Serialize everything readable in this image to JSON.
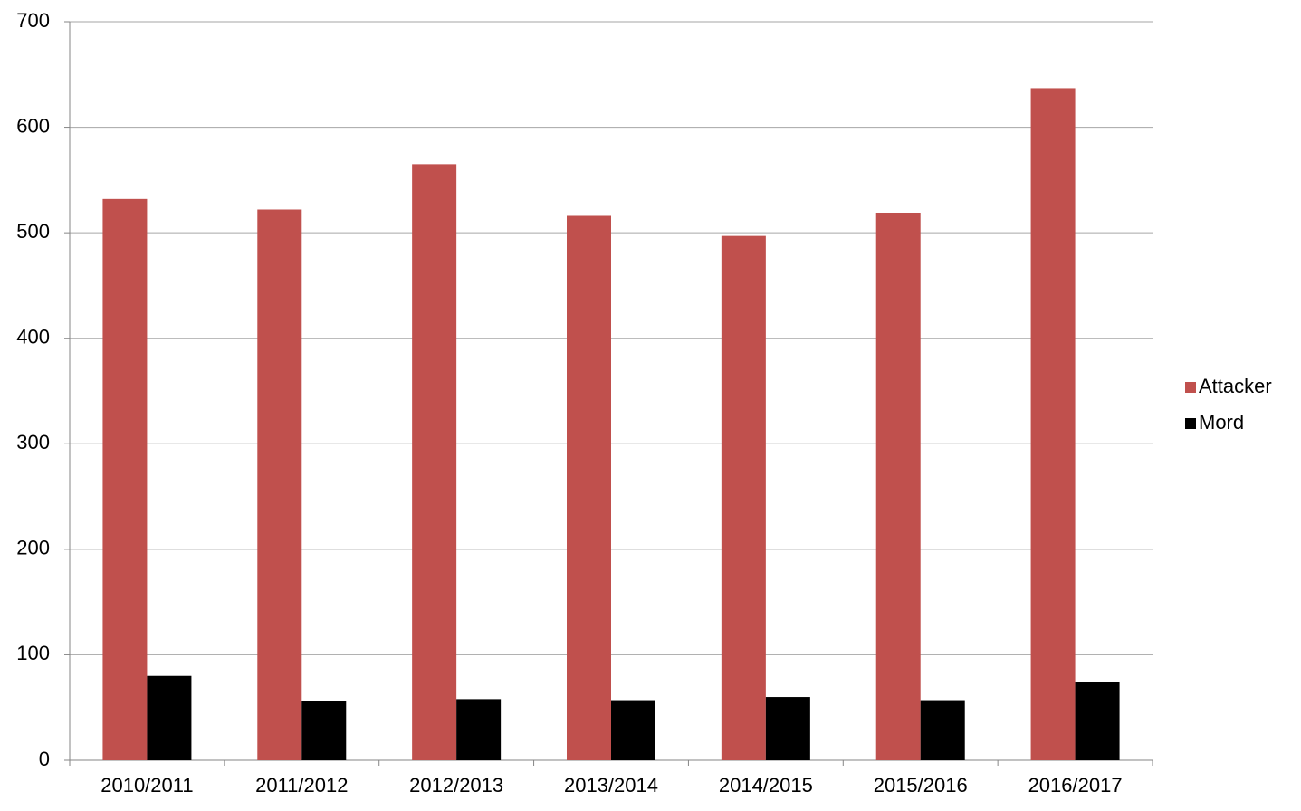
{
  "chart_data": {
    "type": "bar",
    "categories": [
      "2010/2011",
      "2011/2012",
      "2012/2013",
      "2013/2014",
      "2014/2015",
      "2015/2016",
      "2016/2017"
    ],
    "series": [
      {
        "name": "Attacker",
        "color": "#c0504d",
        "values": [
          532,
          522,
          565,
          516,
          497,
          519,
          637
        ]
      },
      {
        "name": "Mord",
        "color": "#000000",
        "values": [
          80,
          56,
          58,
          57,
          60,
          57,
          74
        ]
      }
    ],
    "ylim": [
      0,
      700
    ],
    "yticks": [
      0,
      100,
      200,
      300,
      400,
      500,
      600,
      700
    ],
    "grid": true,
    "legend": "right"
  }
}
